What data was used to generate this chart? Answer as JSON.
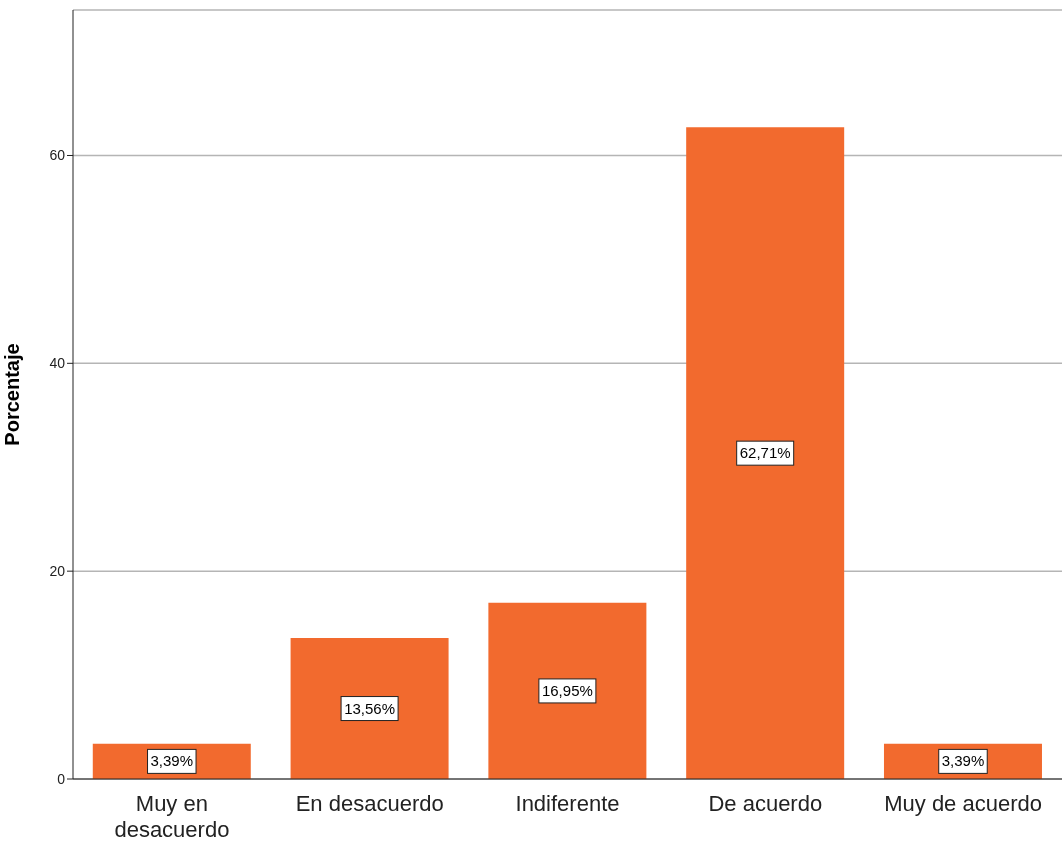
{
  "chart_data": {
    "type": "bar",
    "ylabel": "Porcentaje",
    "categories": [
      "Muy en desacuerdo",
      "En desacuerdo",
      "Indiferente",
      "De acuerdo",
      "Muy de acuerdo"
    ],
    "values": [
      3.39,
      13.56,
      16.95,
      62.71,
      3.39
    ],
    "color": "#f26a2e",
    "value_labels": [
      "3,39%",
      "13,56%",
      "16,95%",
      "62,71%",
      "3,39%"
    ],
    "ylim": [
      0,
      74
    ],
    "yticks": [
      0,
      20,
      40,
      60
    ],
    "grid": "y"
  }
}
